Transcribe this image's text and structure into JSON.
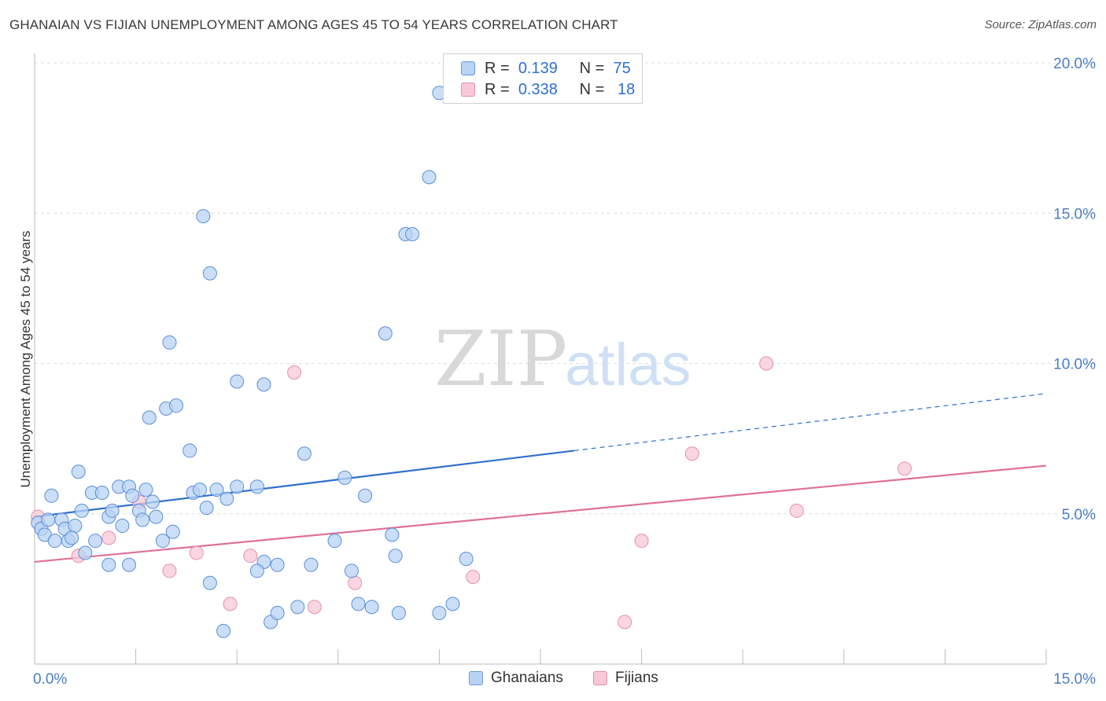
{
  "title": "GHANAIAN VS FIJIAN UNEMPLOYMENT AMONG AGES 45 TO 54 YEARS CORRELATION CHART",
  "source": "Source: ZipAtlas.com",
  "watermark": {
    "zip": "ZIP",
    "atlas": "atlas"
  },
  "legend": {
    "rows": [
      {
        "r_label": "R =",
        "r_value": "0.139",
        "n_label": "N =",
        "n_value": "75"
      },
      {
        "r_label": "R =",
        "r_value": "0.338",
        "n_label": "N =",
        "n_value": "18"
      }
    ]
  },
  "bottom_legend": [
    "Ghanaians",
    "Fijians"
  ],
  "colors": {
    "blue": "#2f6fcf",
    "blue_fill": "#b8d3f4",
    "pink": "#e0709a",
    "pink_fill": "#f8c8d8",
    "grid": "#dcdcdc"
  },
  "chart_data": {
    "type": "scatter",
    "title": "GHANAIAN VS FIJIAN UNEMPLOYMENT AMONG AGES 45 TO 54 YEARS CORRELATION CHART",
    "xlabel": "",
    "ylabel": "Unemployment Among Ages 45 to 54 years",
    "xlim": [
      0,
      15
    ],
    "ylim": [
      0,
      20
    ],
    "x_tick_labels": [
      "0.0%",
      "15.0%"
    ],
    "y_ticks": [
      5,
      10,
      15,
      20
    ],
    "y_tick_labels": [
      "5.0%",
      "10.0%",
      "15.0%",
      "20.0%"
    ],
    "series": [
      {
        "name": "Ghanaians",
        "r": 0.139,
        "n": 75,
        "trend": {
          "x0": 0,
          "y0": 4.9,
          "x_solid_end": 8.0,
          "y_solid_end": 7.1,
          "x1": 15,
          "y1": 9.0
        },
        "points": [
          [
            0.05,
            4.7
          ],
          [
            0.1,
            4.5
          ],
          [
            0.15,
            4.3
          ],
          [
            0.2,
            4.8
          ],
          [
            0.25,
            5.6
          ],
          [
            0.3,
            4.1
          ],
          [
            0.4,
            4.8
          ],
          [
            0.45,
            4.5
          ],
          [
            0.5,
            4.1
          ],
          [
            0.6,
            4.6
          ],
          [
            0.65,
            6.4
          ],
          [
            0.7,
            5.1
          ],
          [
            0.75,
            3.7
          ],
          [
            0.85,
            5.7
          ],
          [
            1.0,
            5.7
          ],
          [
            1.1,
            4.9
          ],
          [
            1.15,
            5.1
          ],
          [
            1.25,
            5.9
          ],
          [
            1.3,
            4.6
          ],
          [
            1.4,
            5.9
          ],
          [
            1.45,
            5.6
          ],
          [
            1.55,
            5.1
          ],
          [
            1.6,
            4.8
          ],
          [
            1.65,
            5.8
          ],
          [
            1.75,
            5.4
          ],
          [
            1.8,
            4.9
          ],
          [
            1.9,
            4.1
          ],
          [
            1.95,
            8.5
          ],
          [
            2.05,
            4.4
          ],
          [
            2.1,
            8.6
          ],
          [
            2.3,
            7.1
          ],
          [
            2.35,
            5.7
          ],
          [
            2.45,
            5.8
          ],
          [
            2.55,
            5.2
          ],
          [
            2.7,
            5.8
          ],
          [
            2.85,
            5.5
          ],
          [
            3.0,
            5.9
          ],
          [
            3.3,
            5.9
          ],
          [
            3.4,
            3.4
          ],
          [
            3.6,
            3.3
          ],
          [
            4.0,
            7.0
          ],
          [
            4.45,
            4.1
          ],
          [
            4.6,
            6.2
          ],
          [
            4.7,
            3.1
          ],
          [
            4.9,
            5.6
          ],
          [
            5.3,
            4.3
          ],
          [
            5.35,
            3.6
          ],
          [
            6.4,
            3.5
          ],
          [
            1.1,
            3.3
          ],
          [
            1.4,
            3.3
          ],
          [
            0.9,
            4.1
          ],
          [
            2.6,
            2.7
          ],
          [
            2.8,
            1.1
          ],
          [
            3.3,
            3.1
          ],
          [
            3.5,
            1.4
          ],
          [
            3.6,
            1.7
          ],
          [
            3.9,
            1.9
          ],
          [
            4.1,
            3.3
          ],
          [
            4.8,
            2.0
          ],
          [
            5.0,
            1.9
          ],
          [
            5.4,
            1.7
          ],
          [
            6.0,
            1.7
          ],
          [
            6.2,
            2.0
          ],
          [
            2.0,
            10.7
          ],
          [
            1.7,
            8.2
          ],
          [
            2.5,
            14.9
          ],
          [
            2.6,
            13.0
          ],
          [
            3.0,
            9.4
          ],
          [
            3.4,
            9.3
          ],
          [
            5.2,
            11.0
          ],
          [
            5.5,
            14.3
          ],
          [
            5.6,
            14.3
          ],
          [
            5.85,
            16.2
          ],
          [
            6.0,
            19.0
          ],
          [
            0.55,
            4.2
          ]
        ]
      },
      {
        "name": "Fijians",
        "r": 0.338,
        "n": 18,
        "trend": {
          "x0": 0,
          "y0": 3.4,
          "x1": 15,
          "y1": 6.6
        },
        "points": [
          [
            0.05,
            4.9
          ],
          [
            0.65,
            3.6
          ],
          [
            1.1,
            4.2
          ],
          [
            1.55,
            5.4
          ],
          [
            2.0,
            3.1
          ],
          [
            2.4,
            3.7
          ],
          [
            2.9,
            2.0
          ],
          [
            3.2,
            3.6
          ],
          [
            3.85,
            9.7
          ],
          [
            4.15,
            1.9
          ],
          [
            4.75,
            2.7
          ],
          [
            6.5,
            2.9
          ],
          [
            8.75,
            1.4
          ],
          [
            9.0,
            4.1
          ],
          [
            9.75,
            7.0
          ],
          [
            10.85,
            10.0
          ],
          [
            11.3,
            5.1
          ],
          [
            12.9,
            6.5
          ]
        ]
      }
    ]
  }
}
